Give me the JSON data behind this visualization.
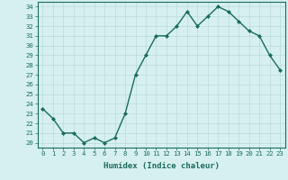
{
  "xlabel": "Humidex (Indice chaleur)",
  "ylabel": "",
  "x": [
    0,
    1,
    2,
    3,
    4,
    5,
    6,
    7,
    8,
    9,
    10,
    11,
    12,
    13,
    14,
    15,
    16,
    17,
    18,
    19,
    20,
    21,
    22,
    23
  ],
  "y": [
    23.5,
    22.5,
    21.0,
    21.0,
    20.0,
    20.5,
    20.0,
    20.5,
    23.0,
    27.0,
    29.0,
    31.0,
    31.0,
    32.0,
    33.5,
    32.0,
    33.0,
    34.0,
    33.5,
    32.5,
    31.5,
    31.0,
    29.0,
    27.5
  ],
  "line_color": "#1a6b5e",
  "marker": "D",
  "marker_size": 2,
  "bg_color": "#d6f0ef",
  "grid_color": "#b8dbd9",
  "ylim": [
    19.5,
    34.5
  ],
  "xlim": [
    -0.5,
    23.5
  ],
  "yticks": [
    20,
    21,
    22,
    23,
    24,
    25,
    26,
    27,
    28,
    29,
    30,
    31,
    32,
    33,
    34
  ],
  "xticks": [
    0,
    1,
    2,
    3,
    4,
    5,
    6,
    7,
    8,
    9,
    10,
    11,
    12,
    13,
    14,
    15,
    16,
    17,
    18,
    19,
    20,
    21,
    22,
    23
  ],
  "tick_fontsize": 5.2,
  "label_fontsize": 6.5,
  "line_width": 1.0
}
